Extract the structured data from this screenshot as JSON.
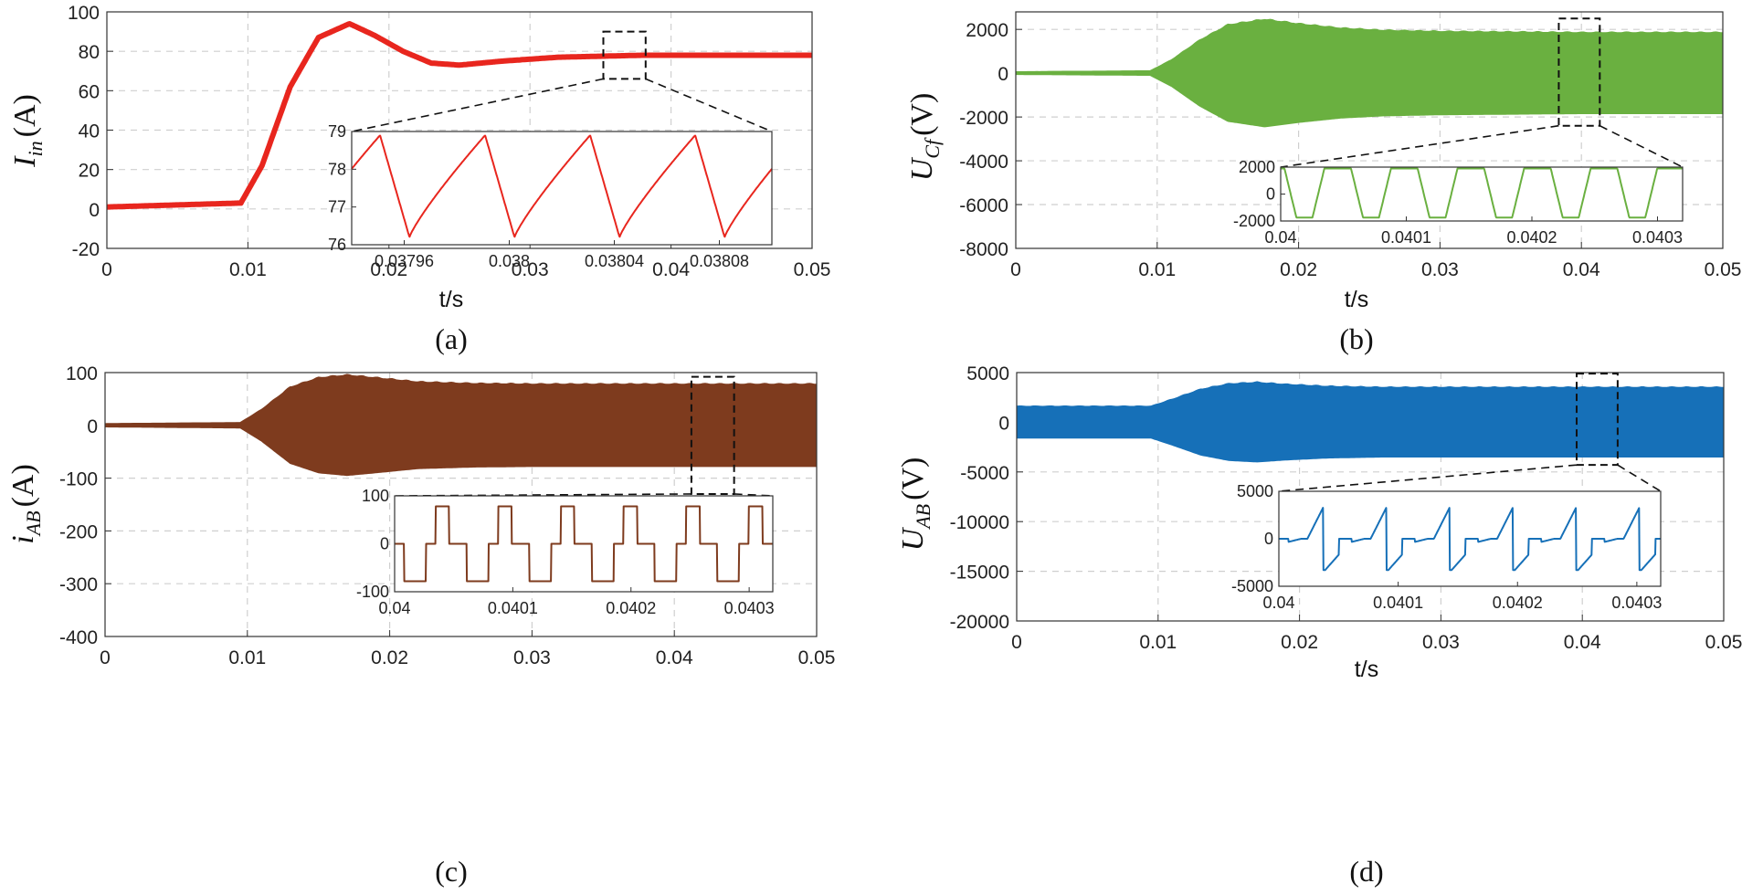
{
  "chart_data": [
    {
      "panel": "(a)",
      "type": "line",
      "color": "#e8261e",
      "xlabel": "t/s",
      "ylabel": {
        "main": "I",
        "sub": "in",
        "unit": "(A)"
      },
      "xlim": [
        0,
        0.05
      ],
      "ylim": [
        -20,
        100
      ],
      "xticks": [
        "0",
        "0.01",
        "0.02",
        "0.03",
        "0.04",
        "0.05"
      ],
      "yticks": [
        "-20",
        "0",
        "20",
        "40",
        "60",
        "80",
        "100"
      ],
      "grid": true,
      "waveform": "dc-step",
      "series": [
        {
          "x": [
            0,
            0.0095,
            0.011,
            0.013,
            0.015,
            0.0172,
            0.019,
            0.021,
            0.023,
            0.025,
            0.028,
            0.032,
            0.038,
            0.05
          ],
          "y": [
            1,
            3,
            22,
            62,
            87,
            94,
            88,
            80,
            74,
            73,
            75,
            77,
            78,
            78
          ]
        }
      ],
      "zoom_box": {
        "x": [
          0.0352,
          0.0382
        ],
        "y": [
          66,
          90
        ]
      },
      "inset": {
        "waveform": "sawtooth",
        "xlim": [
          0.03794,
          0.0381
        ],
        "ylim": [
          76,
          79
        ],
        "xticks": [
          "0.03796",
          "0.038",
          "0.03804",
          "0.03808"
        ],
        "yticks": [
          "76",
          "77",
          "78",
          "79"
        ],
        "period": 4e-05,
        "min": 76.2,
        "max": 78.9,
        "start": 0.037962
      }
    },
    {
      "panel": "(b)",
      "type": "line",
      "color": "#6ab040",
      "xlabel": "t/s",
      "ylabel": {
        "main": "U",
        "sub": "Cf",
        "unit": "(V)"
      },
      "xlim": [
        0,
        0.05
      ],
      "ylim": [
        -8000,
        2800
      ],
      "xticks": [
        "0",
        "0.01",
        "0.02",
        "0.03",
        "0.04",
        "0.05"
      ],
      "yticks": [
        "-8000",
        "-6000",
        "-4000",
        "-2000",
        "0",
        "2000"
      ],
      "grid": true,
      "waveform": "envelope",
      "series": [
        {
          "x": [
            0,
            0.0095,
            0.011,
            0.013,
            0.015,
            0.0176,
            0.02,
            0.023,
            0.026,
            0.03,
            0.04,
            0.05
          ],
          "y": [
            60,
            100,
            600,
            1500,
            2200,
            2450,
            2250,
            2050,
            1950,
            1900,
            1850,
            1850
          ]
        }
      ],
      "zoom_box": {
        "x": [
          0.0384,
          0.0413
        ],
        "y": [
          -2400,
          2500
        ]
      },
      "inset": {
        "waveform": "trapezoid",
        "xlim": [
          0.04,
          0.04032
        ],
        "ylim": [
          -2000,
          2000
        ],
        "xticks": [
          "0.04",
          "0.0401",
          "0.0402",
          "0.0403"
        ],
        "yticks": [
          "-2000",
          "0",
          "2000"
        ],
        "period": 5.3e-05,
        "min": -1750,
        "max": 1900,
        "start": 0.040003
      }
    },
    {
      "panel": "(c)",
      "type": "line",
      "color": "#7e3b1e",
      "xlabel": "",
      "ylabel": {
        "main": "i",
        "sub": "AB",
        "unit": "(A)"
      },
      "xlim": [
        0,
        0.05
      ],
      "ylim": [
        -400,
        100
      ],
      "xticks": [
        "0",
        "0.01",
        "0.02",
        "0.03",
        "0.04",
        "0.05"
      ],
      "yticks": [
        "-400",
        "-300",
        "-200",
        "-100",
        "0",
        "100"
      ],
      "grid": true,
      "waveform": "envelope",
      "series": [
        {
          "x": [
            0,
            0.0095,
            0.011,
            0.013,
            0.015,
            0.017,
            0.019,
            0.022,
            0.026,
            0.03,
            0.04,
            0.05
          ],
          "y": [
            3,
            5,
            30,
            72,
            90,
            95,
            90,
            82,
            79,
            78,
            78,
            78
          ]
        }
      ],
      "zoom_box": {
        "x": [
          0.0412,
          0.0442
        ],
        "y": [
          -130,
          92
        ]
      },
      "inset": {
        "waveform": "quasi-square",
        "xlim": [
          0.04,
          0.04032
        ],
        "ylim": [
          -100,
          100
        ],
        "xticks": [
          "0.04",
          "0.0401",
          "0.0402",
          "0.0403"
        ],
        "yticks": [
          "-100",
          "0",
          "100"
        ],
        "period": 5.3e-05,
        "min": -78,
        "max": 78,
        "start": 0.040008
      }
    },
    {
      "panel": "(d)",
      "type": "line",
      "color": "#1670b8",
      "xlabel": "t/s",
      "ylabel": {
        "main": "U",
        "sub": "AB",
        "unit": "(V)"
      },
      "xlim": [
        0,
        0.05
      ],
      "ylim": [
        -20000,
        5000
      ],
      "xticks": [
        "0",
        "0.01",
        "0.02",
        "0.03",
        "0.04",
        "0.05"
      ],
      "yticks": [
        "-20000",
        "-15000",
        "-10000",
        "-5000",
        "0",
        "5000"
      ],
      "grid": true,
      "waveform": "envelope",
      "series": [
        {
          "x": [
            0,
            0.0095,
            0.011,
            0.013,
            0.015,
            0.017,
            0.019,
            0.022,
            0.026,
            0.03,
            0.04,
            0.05
          ],
          "y": [
            1600,
            1600,
            2300,
            3300,
            3850,
            4000,
            3800,
            3600,
            3500,
            3500,
            3500,
            3500
          ]
        }
      ],
      "zoom_box": {
        "x": [
          0.0396,
          0.0425
        ],
        "y": [
          -4300,
          4900
        ]
      },
      "inset": {
        "waveform": "ramp-step",
        "xlim": [
          0.04,
          0.04032
        ],
        "ylim": [
          -5000,
          5000
        ],
        "xticks": [
          "0.04",
          "0.0401",
          "0.0402",
          "0.0403"
        ],
        "yticks": [
          "-5000",
          "0",
          "5000"
        ],
        "period": 5.3e-05,
        "min": -3300,
        "max": 3300,
        "start": 0.040008
      }
    }
  ]
}
